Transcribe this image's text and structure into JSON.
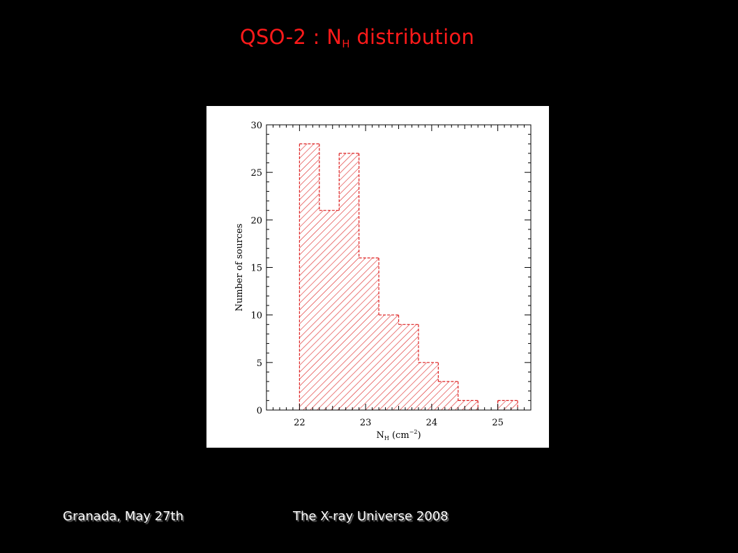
{
  "slide": {
    "title_main": "QSO-2 : N",
    "title_sub": "H",
    "title_rest": " distribution",
    "footer_left": "Granada, May 27th",
    "footer_right": "The X-ray Universe 2008"
  },
  "chart_data": {
    "type": "bar",
    "title": "",
    "xlabel_main": "N",
    "xlabel_sub": "H",
    "xlabel_rest": " (cm",
    "xlabel_sup": "−2",
    "xlabel_close": ")",
    "ylabel": "Number of sources",
    "xlim": [
      21.5,
      25.5
    ],
    "ylim": [
      0,
      30
    ],
    "x_ticks": [
      22,
      23,
      24,
      25
    ],
    "x_tick_labels": [
      "22",
      "23",
      "24",
      "25"
    ],
    "y_ticks": [
      0,
      5,
      10,
      15,
      20,
      25,
      30
    ],
    "y_tick_labels": [
      "0",
      "5",
      "10",
      "15",
      "20",
      "25",
      "30"
    ],
    "bin_width": 0.3,
    "bin_starts": [
      22.0,
      22.3,
      22.6,
      22.9,
      23.2,
      23.5,
      23.8,
      24.1,
      24.4,
      24.7,
      25.0
    ],
    "values": [
      28,
      21,
      27,
      16,
      10,
      9,
      5,
      3,
      1,
      0,
      1
    ],
    "grid": false,
    "fill": "diagonal-hatch",
    "color": "#dd2222"
  },
  "colors": {
    "background": "#000000",
    "title": "#ff1a1a",
    "footer": "#ffffff",
    "bars": "#dd2222"
  }
}
